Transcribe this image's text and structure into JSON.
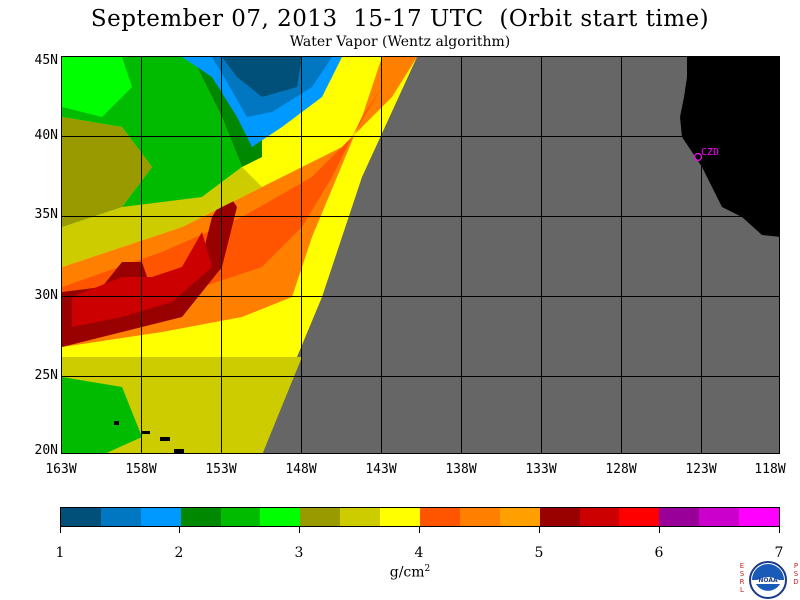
{
  "header": {
    "title": "September 07, 2013  15-17 UTC  (Orbit start time)",
    "subtitle": "Water Vapor (Wentz algorithm)"
  },
  "map": {
    "lat_labels": [
      "45N",
      "40N",
      "35N",
      "30N",
      "25N",
      "20N"
    ],
    "lon_labels": [
      "163W",
      "158W",
      "153W",
      "148W",
      "143W",
      "138W",
      "133W",
      "128W",
      "123W",
      "118W"
    ],
    "lat_range": [
      20,
      45
    ],
    "lon_range": [
      -163,
      -118
    ],
    "station_label": "CZD",
    "station_color": "#ff00ff",
    "land_color": "#000000",
    "nodata_color": "#666666"
  },
  "colorbar": {
    "ticks": [
      "1",
      "2",
      "3",
      "4",
      "5",
      "6",
      "7"
    ],
    "units_base": "g/cm",
    "units_sup": "2",
    "colors": [
      "#00507a",
      "#0077c0",
      "#0099ff",
      "#008800",
      "#00bb00",
      "#00ff00",
      "#999900",
      "#cccc00",
      "#ffff00",
      "#ff5500",
      "#ff7f00",
      "#ff9f00",
      "#990000",
      "#cc0000",
      "#ff0000",
      "#990099",
      "#cc00cc",
      "#ff00ff"
    ]
  },
  "logo": {
    "left_letters": "ESRL",
    "right_letters": "PSD",
    "center_text": "NOAA"
  }
}
